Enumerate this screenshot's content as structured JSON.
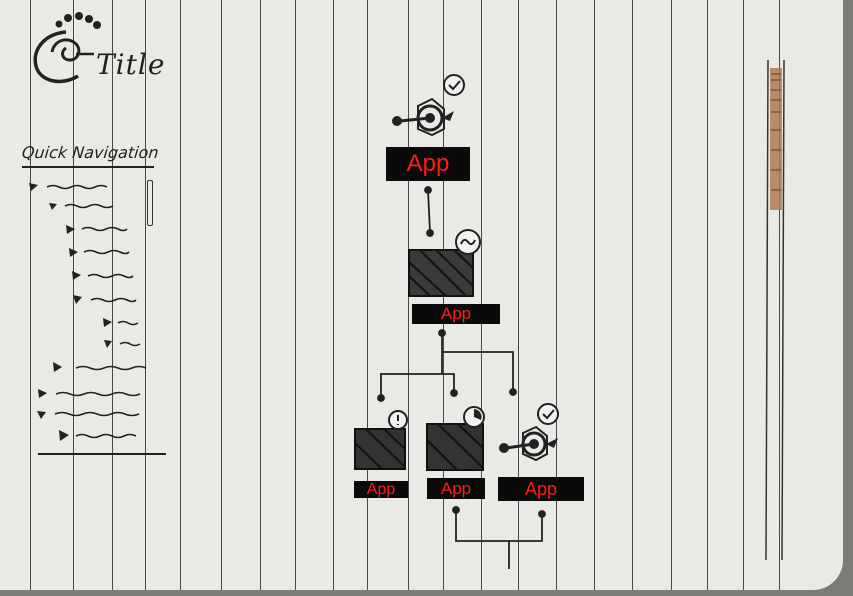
{
  "app": {
    "title": "Title"
  },
  "navigation": {
    "label": "Quick Navigation",
    "items": [
      {
        "level": 0
      },
      {
        "level": 1
      },
      {
        "level": 2
      },
      {
        "level": 2
      },
      {
        "level": 2
      },
      {
        "level": 2
      },
      {
        "level": 3
      },
      {
        "level": 3
      },
      {
        "level": 1
      },
      {
        "level": 0
      },
      {
        "level": 0
      },
      {
        "level": 1
      }
    ]
  },
  "flow": {
    "nodes": [
      {
        "id": "node-1",
        "label": "App",
        "icon": "gear-check-icon"
      },
      {
        "id": "node-2",
        "label": "App",
        "icon": "chart-wave-icon"
      },
      {
        "id": "node-3",
        "label": "App",
        "icon": "chart-alert-icon"
      },
      {
        "id": "node-4",
        "label": "App",
        "icon": "chart-pie-icon"
      },
      {
        "id": "node-5",
        "label": "App",
        "icon": "gear-check-icon"
      }
    ]
  },
  "colors": {
    "paper": "#e9e9e6",
    "ink": "#222222",
    "label_bg": "#0a0a0a",
    "label_text": "#ff1a1a"
  }
}
